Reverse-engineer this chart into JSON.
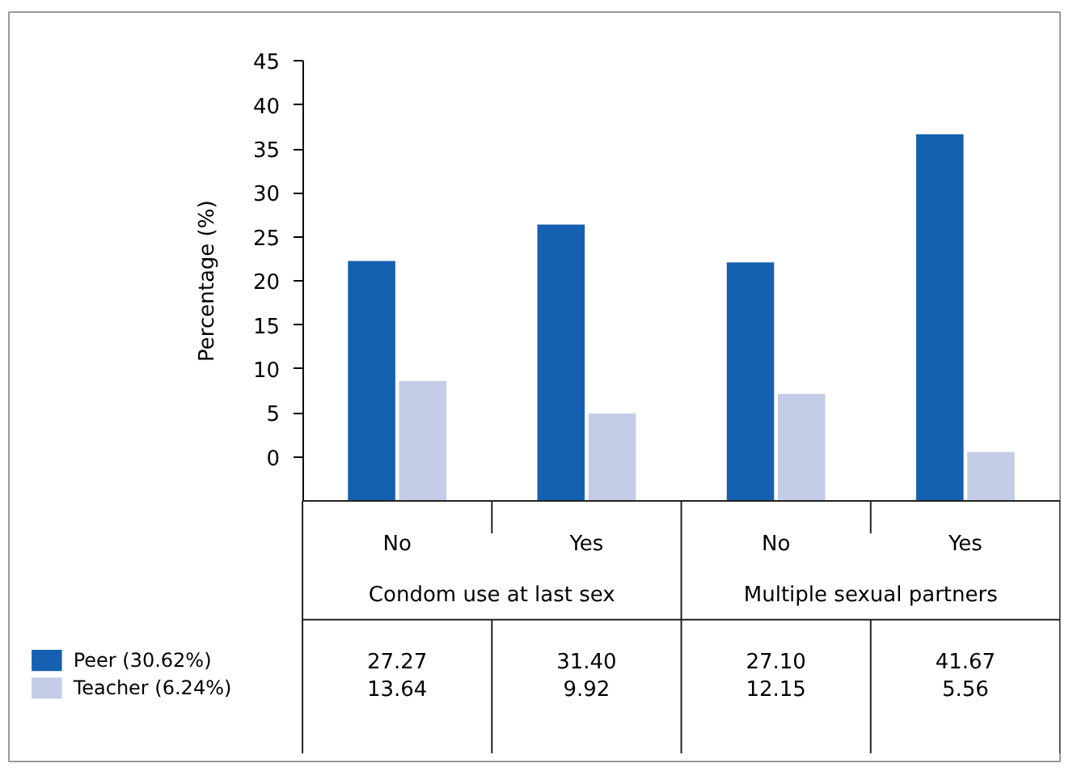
{
  "chart_data": {
    "type": "bar",
    "ylabel": "Percentage (%)",
    "categories": [
      "No",
      "Yes",
      "No",
      "Yes"
    ],
    "series": [
      {
        "name": "Peer (30.62%)",
        "color": "#1560b0",
        "values": [
          27.27,
          31.4,
          27.1,
          41.67
        ],
        "base": [
          -5,
          -5,
          -5,
          -5
        ],
        "value_labels": [
          "27.27",
          "31.40",
          "27.10",
          "41.67"
        ]
      },
      {
        "name": "Teacher (6.24%)",
        "color": "#c5cce8",
        "values": [
          13.64,
          9.92,
          12.15,
          5.56
        ],
        "base": [
          -5,
          -5,
          -5,
          -5
        ],
        "value_labels": [
          "13.64",
          "9.92",
          "12.15",
          "5.56"
        ]
      }
    ],
    "annotations": [
      {
        "text": "Condom use at last sex"
      },
      {
        "text": "Multiple sexual partners"
      }
    ],
    "ylim": [
      -5,
      45
    ],
    "yticks": [
      0,
      5,
      10,
      15,
      20,
      25,
      30,
      35,
      40,
      45
    ],
    "grid": false,
    "legend": "bottom left"
  }
}
